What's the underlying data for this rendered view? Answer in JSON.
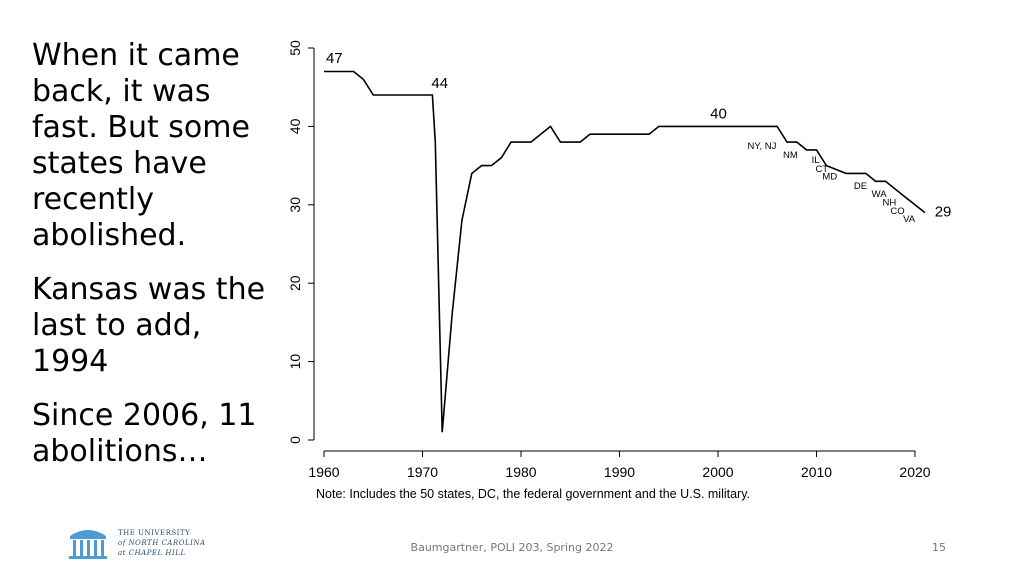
{
  "slide": {
    "paragraphs": [
      "When it came back, it was fast. But some states have recently abolished.",
      "Kansas was the last to add, 1994",
      "Since 2006, 11 abolitions…"
    ]
  },
  "footer": {
    "credit": "Baumgartner, POLI 203, Spring 2022",
    "page_number": "15"
  },
  "logo": {
    "line1": "THE UNIVERSITY",
    "line2": "of NORTH CAROLINA",
    "line3": "at CHAPEL HILL",
    "color": "#2b4a6f"
  },
  "chart_data": {
    "type": "line",
    "title": "",
    "xlabel": "",
    "ylabel": "",
    "xlim": [
      1959,
      2022
    ],
    "ylim": [
      0,
      50
    ],
    "x_ticks": [
      "1960",
      "1970",
      "1980",
      "1990",
      "2000",
      "2010",
      "2020"
    ],
    "y_ticks": [
      "0",
      "10",
      "20",
      "30",
      "40",
      "50"
    ],
    "grid": false,
    "note": "Note: Includes the 50 states, DC, the federal government and the U.S. military.",
    "series": [
      {
        "color": "#000000",
        "x": [
          1960,
          1963,
          1964,
          1965,
          1971,
          1971.3,
          1972,
          1973,
          1974,
          1975,
          1976,
          1977,
          1978,
          1979,
          1981,
          1982,
          1983,
          1984,
          1986,
          1987,
          1993,
          1994,
          2006,
          2007,
          2008,
          2009,
          2010,
          2011,
          2013,
          2015,
          2016,
          2017,
          2018,
          2019,
          2020,
          2021
        ],
        "y": [
          47,
          47,
          46,
          44,
          44,
          38,
          1,
          16,
          28,
          34,
          35,
          35,
          36,
          38,
          38,
          39,
          40,
          38,
          38,
          39,
          39,
          40,
          40,
          38,
          38,
          37,
          37,
          35,
          34,
          34,
          33,
          33,
          32,
          31,
          30,
          29
        ]
      }
    ],
    "annotations": [
      {
        "text": "47",
        "x": 1960.2,
        "y": 48.1
      },
      {
        "text": "44",
        "x": 1970.9,
        "y": 44.9
      },
      {
        "text": "40",
        "x": 1999.2,
        "y": 41.0
      },
      {
        "text": "NY, NJ",
        "x": 2003.0,
        "y": 37.1
      },
      {
        "text": "NM",
        "x": 2006.6,
        "y": 36.0
      },
      {
        "text": "IL",
        "x": 2009.5,
        "y": 35.3
      },
      {
        "text": "CT",
        "x": 2009.9,
        "y": 34.2
      },
      {
        "text": "MD",
        "x": 2010.6,
        "y": 33.2
      },
      {
        "text": "DE",
        "x": 2013.8,
        "y": 32.0
      },
      {
        "text": "WA",
        "x": 2015.6,
        "y": 31.0
      },
      {
        "text": "NH",
        "x": 2016.7,
        "y": 29.9
      },
      {
        "text": "CO",
        "x": 2017.5,
        "y": 28.8
      },
      {
        "text": "VA",
        "x": 2018.8,
        "y": 27.8
      },
      {
        "text": "29",
        "x": 2022.0,
        "y": 28.5
      }
    ]
  }
}
